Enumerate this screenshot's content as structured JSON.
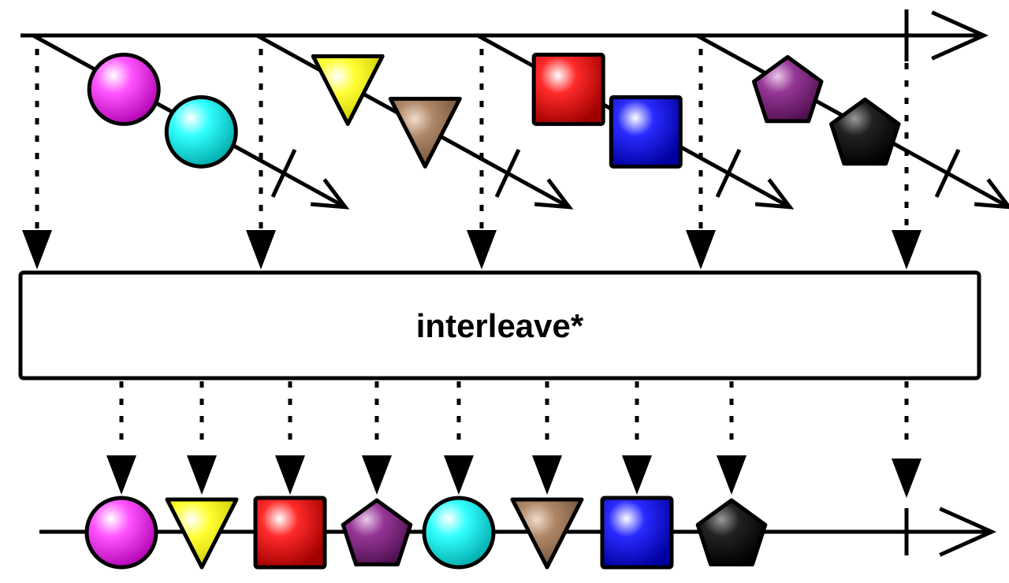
{
  "operator": {
    "label": "interleave*"
  },
  "colors": {
    "magenta": "#ff33ff",
    "cyan": "#00ffff",
    "yellow": "#ffff00",
    "brown": "#a0785a",
    "red": "#ff1a1a",
    "blue": "#1a1aff",
    "purple": "#8a2a8a",
    "black": "#111111"
  },
  "source_streams": [
    {
      "name": "",
      "items": [
        {
          "shape": "circle",
          "color": "magenta"
        },
        {
          "shape": "circle",
          "color": "cyan"
        }
      ],
      "completes": true
    },
    {
      "name": "",
      "items": [
        {
          "shape": "triangle",
          "color": "yellow"
        },
        {
          "shape": "triangle",
          "color": "brown"
        }
      ],
      "completes": true
    },
    {
      "name": "",
      "items": [
        {
          "shape": "square",
          "color": "red"
        },
        {
          "shape": "square",
          "color": "blue"
        }
      ],
      "completes": true
    },
    {
      "name": "",
      "items": [
        {
          "shape": "pentagon",
          "color": "purple"
        },
        {
          "shape": "pentagon",
          "color": "black"
        }
      ],
      "completes": true
    }
  ],
  "output_stream": {
    "items": [
      {
        "shape": "circle",
        "color": "magenta"
      },
      {
        "shape": "triangle",
        "color": "yellow"
      },
      {
        "shape": "square",
        "color": "red"
      },
      {
        "shape": "pentagon",
        "color": "purple"
      },
      {
        "shape": "circle",
        "color": "cyan"
      },
      {
        "shape": "triangle",
        "color": "brown"
      },
      {
        "shape": "square",
        "color": "blue"
      },
      {
        "shape": "pentagon",
        "color": "black"
      }
    ],
    "completes": true
  }
}
